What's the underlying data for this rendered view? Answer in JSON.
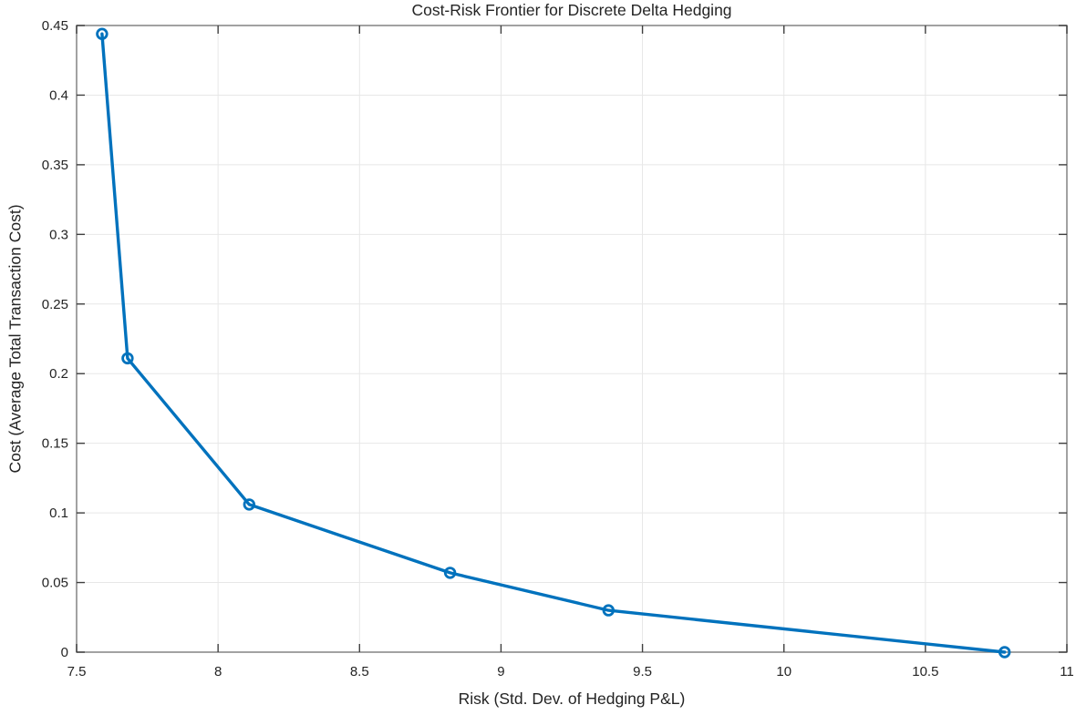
{
  "chart_data": {
    "type": "line",
    "title": "Cost-Risk Frontier for Discrete Delta Hedging",
    "xlabel": "Risk (Std. Dev. of Hedging P&L)",
    "ylabel": "Cost (Average Total Transaction Cost)",
    "xlim": [
      7.5,
      11
    ],
    "ylim": [
      0,
      0.45
    ],
    "grid": true,
    "box": true,
    "tick_direction": "in",
    "legend_position": "none",
    "xticks": {
      "values": [
        7.5,
        8,
        8.5,
        9,
        9.5,
        10,
        10.5,
        11
      ],
      "labels": [
        "7.5",
        "8",
        "8.5",
        "9",
        "9.5",
        "10",
        "10.5",
        "11"
      ]
    },
    "yticks": {
      "values": [
        0,
        0.05,
        0.1,
        0.15,
        0.2,
        0.25,
        0.3,
        0.35,
        0.4,
        0.45
      ],
      "labels": [
        "0",
        "0.05",
        "0.1",
        "0.15",
        "0.2",
        "0.25",
        "0.3",
        "0.35",
        "0.4",
        "0.45"
      ]
    },
    "series": [
      {
        "name": "cost-risk-frontier",
        "marker": "open-circle",
        "color": "#0072BD",
        "points": [
          [
            7.59,
            0.444
          ],
          [
            7.68,
            0.211
          ],
          [
            8.11,
            0.106
          ],
          [
            8.82,
            0.057
          ],
          [
            9.38,
            0.03
          ],
          [
            10.78,
            0.0
          ]
        ]
      }
    ],
    "colors": {
      "line": "#0072BD",
      "grid": "#E7E7E7",
      "box": "#8A8A8A",
      "tick": "#3F3F3F",
      "text": "#242424",
      "background": "#FFFFFF"
    }
  }
}
